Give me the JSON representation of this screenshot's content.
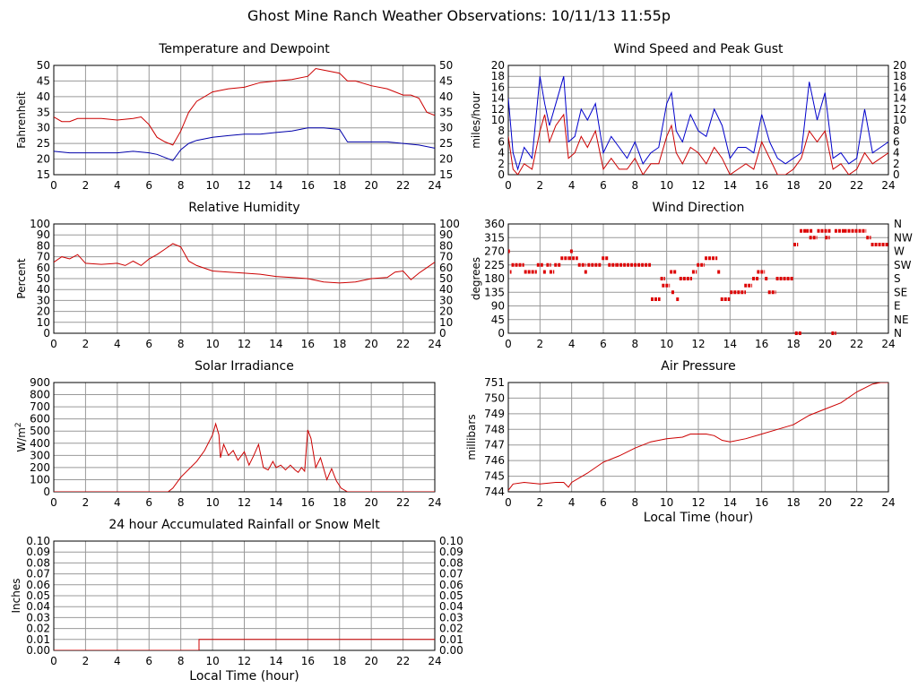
{
  "title": "Ghost Mine Ranch Weather Observations: 10/11/13 11:55p",
  "chart_data": [
    {
      "id": "temp",
      "type": "line",
      "title": "Temperature and Dewpoint",
      "xlabel": "",
      "ylabel": "Fahrenheit",
      "xlim": [
        0,
        24
      ],
      "ylim": [
        15,
        50
      ],
      "xticks": [
        0,
        2,
        4,
        6,
        8,
        10,
        12,
        14,
        16,
        18,
        20,
        22,
        24
      ],
      "yticks": [
        15,
        20,
        25,
        30,
        35,
        40,
        45,
        50
      ],
      "right_axis": true,
      "grid": true,
      "series": [
        {
          "color": "#cc0000",
          "x": [
            0,
            0.5,
            1,
            1.5,
            2,
            3,
            4,
            5,
            5.5,
            6,
            6.5,
            7,
            7.5,
            8,
            8.5,
            9,
            10,
            11,
            12,
            13,
            14,
            15,
            16,
            16.5,
            17,
            18,
            18.5,
            19,
            20,
            21,
            22,
            22.5,
            23,
            23.5,
            24
          ],
          "y": [
            33.5,
            32,
            32,
            33,
            33,
            33,
            32.5,
            33,
            33.5,
            31,
            27,
            25.5,
            24.5,
            29,
            35,
            38.5,
            41.5,
            42.5,
            43,
            44.5,
            45,
            45.5,
            46.5,
            49,
            48.5,
            47.5,
            45,
            45,
            43.5,
            42.5,
            40.5,
            40.5,
            39.5,
            35,
            34
          ]
        },
        {
          "color": "#0000aa",
          "x": [
            0,
            1,
            2,
            3,
            4,
            5,
            6,
            6.5,
            7,
            7.5,
            8,
            8.5,
            9,
            10,
            11,
            12,
            13,
            14,
            15,
            16,
            17,
            18,
            18.5,
            19,
            20,
            21,
            22,
            23,
            24
          ],
          "y": [
            22.5,
            22,
            22,
            22,
            22,
            22.5,
            22,
            21.5,
            20.5,
            19.5,
            23,
            25,
            26,
            27,
            27.5,
            28,
            28,
            28.5,
            29,
            30,
            30,
            29.5,
            25.5,
            25.5,
            25.5,
            25.5,
            25,
            24.5,
            23.5
          ]
        }
      ]
    },
    {
      "id": "wind",
      "type": "line",
      "title": "Wind Speed and Peak Gust",
      "xlabel": "",
      "ylabel": "miles/hour",
      "xlim": [
        0,
        24
      ],
      "ylim": [
        0,
        20
      ],
      "xticks": [
        0,
        2,
        4,
        6,
        8,
        10,
        12,
        14,
        16,
        18,
        20,
        22,
        24
      ],
      "yticks": [
        0,
        2,
        4,
        6,
        8,
        10,
        12,
        14,
        16,
        18,
        20
      ],
      "right_axis": true,
      "grid": true,
      "series": [
        {
          "color": "#0000cc",
          "x": [
            0,
            0.3,
            0.6,
            1,
            1.5,
            2,
            2.3,
            2.6,
            3,
            3.5,
            3.8,
            4.2,
            4.6,
            5,
            5.5,
            6,
            6.5,
            7,
            7.5,
            8,
            8.5,
            9,
            9.5,
            10,
            10.3,
            10.6,
            11,
            11.5,
            12,
            12.5,
            13,
            13.5,
            14,
            14.5,
            15,
            15.5,
            16,
            16.5,
            17,
            17.5,
            18,
            18.5,
            19,
            19.5,
            20,
            20.5,
            21,
            21.5,
            22,
            22.5,
            23,
            23.5,
            24
          ],
          "y": [
            14,
            4,
            1,
            5,
            3,
            18,
            13,
            9,
            13,
            18,
            6,
            7,
            12,
            10,
            13,
            4,
            7,
            5,
            3,
            6,
            2,
            4,
            5,
            13,
            15,
            8,
            6,
            11,
            8,
            7,
            12,
            9,
            3,
            5,
            5,
            4,
            11,
            6,
            3,
            2,
            3,
            4,
            17,
            10,
            15,
            3,
            4,
            2,
            3,
            12,
            4,
            5,
            6
          ]
        },
        {
          "color": "#cc0000",
          "x": [
            0,
            0.3,
            0.6,
            1,
            1.5,
            2,
            2.3,
            2.6,
            3,
            3.5,
            3.8,
            4.2,
            4.6,
            5,
            5.5,
            6,
            6.5,
            7,
            7.5,
            8,
            8.5,
            9,
            9.5,
            10,
            10.3,
            10.6,
            11,
            11.5,
            12,
            12.5,
            13,
            13.5,
            14,
            14.5,
            15,
            15.5,
            16,
            16.5,
            17,
            17.5,
            18,
            18.5,
            19,
            19.5,
            20,
            20.5,
            21,
            21.5,
            22,
            22.5,
            23,
            23.5,
            24
          ],
          "y": [
            7,
            1,
            0,
            2,
            1,
            8,
            11,
            6,
            9,
            11,
            3,
            4,
            7,
            5,
            8,
            1,
            3,
            1,
            1,
            3,
            0,
            2,
            2,
            7,
            9,
            4,
            2,
            5,
            4,
            2,
            5,
            3,
            0,
            1,
            2,
            1,
            6,
            3,
            0,
            0,
            1,
            3,
            8,
            6,
            8,
            1,
            2,
            0,
            1,
            4,
            2,
            3,
            4
          ]
        }
      ]
    },
    {
      "id": "humidity",
      "type": "line",
      "title": "Relative Humidity",
      "xlabel": "",
      "ylabel": "Percent",
      "xlim": [
        0,
        24
      ],
      "ylim": [
        0,
        100
      ],
      "xticks": [
        0,
        2,
        4,
        6,
        8,
        10,
        12,
        14,
        16,
        18,
        20,
        22,
        24
      ],
      "yticks": [
        0,
        10,
        20,
        30,
        40,
        50,
        60,
        70,
        80,
        90,
        100
      ],
      "right_axis": true,
      "grid": true,
      "series": [
        {
          "color": "#cc0000",
          "x": [
            0,
            0.5,
            1,
            1.5,
            2,
            3,
            4,
            4.5,
            5,
            5.5,
            6,
            6.5,
            7,
            7.5,
            8,
            8.5,
            9,
            10,
            11,
            12,
            13,
            14,
            15,
            16,
            17,
            18,
            19,
            20,
            21,
            21.5,
            22,
            22.5,
            23,
            23.5,
            24
          ],
          "y": [
            65,
            70,
            68,
            72,
            64,
            63,
            64,
            62,
            66,
            62,
            68,
            72,
            77,
            82,
            79,
            66,
            62,
            57,
            56,
            55,
            54,
            52,
            51,
            50,
            47,
            46,
            47,
            50,
            51,
            56,
            57,
            49,
            55,
            60,
            65
          ]
        }
      ]
    },
    {
      "id": "direction",
      "type": "scatter",
      "title": "Wind Direction",
      "xlabel": "",
      "ylabel": "degrees",
      "xlim": [
        0,
        24
      ],
      "ylim": [
        0,
        360
      ],
      "xticks": [
        0,
        2,
        4,
        6,
        8,
        10,
        12,
        14,
        16,
        18,
        20,
        22,
        24
      ],
      "yticks": [
        0,
        45,
        90,
        135,
        180,
        225,
        270,
        315,
        360
      ],
      "right_ticklabels": [
        "N",
        "NE",
        "E",
        "SE",
        "S",
        "SW",
        "W",
        "NW",
        "N"
      ],
      "grid": true,
      "segments": [
        [
          0,
          0.1,
          270
        ],
        [
          0.1,
          0.2,
          202
        ],
        [
          0.2,
          1,
          225
        ],
        [
          1,
          1.8,
          202
        ],
        [
          1.8,
          2.2,
          225
        ],
        [
          2.2,
          2.4,
          202
        ],
        [
          2.4,
          2.7,
          225
        ],
        [
          2.6,
          2.9,
          202
        ],
        [
          2.9,
          3.3,
          225
        ],
        [
          3.3,
          3.8,
          247
        ],
        [
          3.8,
          4.4,
          247
        ],
        [
          3.9,
          4.1,
          270
        ],
        [
          4.4,
          4.9,
          225
        ],
        [
          4.8,
          5.0,
          202
        ],
        [
          5.0,
          5.9,
          225
        ],
        [
          5.9,
          6.3,
          247
        ],
        [
          6.3,
          6.8,
          225
        ],
        [
          6.8,
          9.0,
          225
        ],
        [
          9.0,
          9.6,
          112
        ],
        [
          9.6,
          9.9,
          180
        ],
        [
          9.7,
          10.2,
          157
        ],
        [
          10.2,
          10.6,
          202
        ],
        [
          10.3,
          10.5,
          135
        ],
        [
          10.6,
          10.8,
          112
        ],
        [
          10.8,
          11.6,
          180
        ],
        [
          11.6,
          11.9,
          202
        ],
        [
          11.9,
          12.4,
          225
        ],
        [
          12.4,
          13.2,
          247
        ],
        [
          13.2,
          13.4,
          202
        ],
        [
          13.4,
          14.0,
          112
        ],
        [
          14.0,
          15.0,
          135
        ],
        [
          14.9,
          15.4,
          157
        ],
        [
          15.4,
          15.8,
          180
        ],
        [
          15.7,
          16.2,
          202
        ],
        [
          16.2,
          16.4,
          180
        ],
        [
          16.4,
          16.9,
          135
        ],
        [
          16.9,
          18.0,
          180
        ],
        [
          18.0,
          18.3,
          292
        ],
        [
          18.1,
          18.5,
          0
        ],
        [
          18.4,
          18.8,
          337
        ],
        [
          18.8,
          19.2,
          337
        ],
        [
          19.0,
          19.5,
          315
        ],
        [
          19.5,
          20.4,
          337
        ],
        [
          20.0,
          20.3,
          315
        ],
        [
          20.4,
          20.7,
          0
        ],
        [
          20.6,
          21.2,
          337
        ],
        [
          21.2,
          22.6,
          337
        ],
        [
          22.6,
          22.9,
          315
        ],
        [
          22.9,
          24.0,
          292
        ]
      ]
    },
    {
      "id": "solar",
      "type": "line",
      "title": "Solar Irradiance",
      "xlabel": "",
      "ylabel": "W/m2",
      "xlim": [
        0,
        24
      ],
      "ylim": [
        0,
        900
      ],
      "xticks": [
        0,
        2,
        4,
        6,
        8,
        10,
        12,
        14,
        16,
        18,
        20,
        22,
        24
      ],
      "yticks": [
        0,
        100,
        200,
        300,
        400,
        500,
        600,
        700,
        800,
        900
      ],
      "right_axis": false,
      "grid": true,
      "series": [
        {
          "color": "#cc0000",
          "x": [
            0,
            7.2,
            7.5,
            8,
            9,
            9.5,
            10,
            10.2,
            10.4,
            10.5,
            10.7,
            11,
            11.3,
            11.6,
            12,
            12.3,
            12.6,
            12.9,
            13.2,
            13.5,
            13.8,
            14,
            14.3,
            14.6,
            14.9,
            15.2,
            15.4,
            15.6,
            15.8,
            16,
            16.2,
            16.5,
            16.8,
            17.2,
            17.5,
            17.8,
            18.1,
            18.5,
            24
          ],
          "y": [
            0,
            0,
            30,
            120,
            250,
            340,
            470,
            560,
            470,
            280,
            390,
            300,
            340,
            260,
            330,
            220,
            300,
            390,
            200,
            180,
            250,
            200,
            220,
            180,
            220,
            180,
            160,
            200,
            170,
            510,
            440,
            200,
            280,
            100,
            190,
            90,
            30,
            0,
            0
          ]
        }
      ]
    },
    {
      "id": "pressure",
      "type": "line",
      "title": "Air Pressure",
      "xlabel": "Local Time (hour)",
      "ylabel": "millibars",
      "xlim": [
        0,
        24
      ],
      "ylim": [
        744,
        751
      ],
      "xticks": [
        0,
        2,
        4,
        6,
        8,
        10,
        12,
        14,
        16,
        18,
        20,
        22,
        24
      ],
      "yticks": [
        744,
        745,
        746,
        747,
        748,
        749,
        750,
        751
      ],
      "right_axis": false,
      "grid": true,
      "series": [
        {
          "color": "#cc0000",
          "x": [
            0,
            0.3,
            1,
            2,
            3,
            3.5,
            3.8,
            4,
            5,
            6,
            7,
            8,
            9,
            10,
            11,
            11.5,
            12,
            12.5,
            13,
            13.5,
            14,
            15,
            16,
            17,
            18,
            19,
            20,
            21,
            22,
            23,
            23.5,
            24
          ],
          "y": [
            744.1,
            744.5,
            744.6,
            744.5,
            744.6,
            744.6,
            744.3,
            744.6,
            745.2,
            745.9,
            746.3,
            746.8,
            747.2,
            747.4,
            747.5,
            747.7,
            747.7,
            747.7,
            747.6,
            747.3,
            747.2,
            747.4,
            747.7,
            748.0,
            748.3,
            748.9,
            749.3,
            749.7,
            750.4,
            750.9,
            751.0,
            751.0
          ]
        }
      ]
    },
    {
      "id": "rain",
      "type": "line",
      "title": "24 hour Accumulated Rainfall or Snow Melt",
      "xlabel": "Local Time (hour)",
      "ylabel": "Inches",
      "xlim": [
        0,
        24
      ],
      "ylim": [
        0,
        0.1
      ],
      "xticks": [
        0,
        2,
        4,
        6,
        8,
        10,
        12,
        14,
        16,
        18,
        20,
        22,
        24
      ],
      "yticks": [
        0,
        0.01,
        0.02,
        0.03,
        0.04,
        0.05,
        0.06,
        0.07,
        0.08,
        0.09,
        0.1
      ],
      "right_axis": true,
      "grid": true,
      "series": [
        {
          "color": "#cc0000",
          "x": [
            0,
            9.15,
            9.15,
            24
          ],
          "y": [
            0,
            0,
            0.01,
            0.01
          ]
        }
      ]
    }
  ]
}
